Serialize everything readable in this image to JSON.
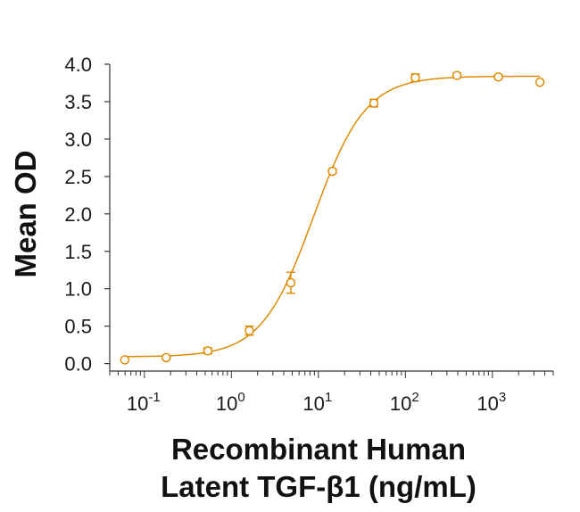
{
  "chart_data": {
    "type": "scatter",
    "title": "",
    "xlabel_lines": [
      "Recombinant Human",
      "Latent TGF-β1 (ng/mL)"
    ],
    "ylabel": "Mean OD",
    "x_scale": "log",
    "xlim": [
      0.04,
      5000
    ],
    "ylim": [
      -0.1,
      4.0
    ],
    "y_ticks": [
      {
        "value": 0.0,
        "label": "0.0"
      },
      {
        "value": 0.5,
        "label": "0.5"
      },
      {
        "value": 1.0,
        "label": "1.0"
      },
      {
        "value": 1.5,
        "label": "1.5"
      },
      {
        "value": 2.0,
        "label": "2.0"
      },
      {
        "value": 2.5,
        "label": "2.5"
      },
      {
        "value": 3.0,
        "label": "3.0"
      },
      {
        "value": 3.5,
        "label": "3.5"
      },
      {
        "value": 4.0,
        "label": "4.0"
      }
    ],
    "x_ticks": [
      {
        "value": 0.1,
        "base": "10",
        "exp": "-1"
      },
      {
        "value": 1,
        "base": "10",
        "exp": "0"
      },
      {
        "value": 10,
        "base": "10",
        "exp": "1"
      },
      {
        "value": 100,
        "base": "10",
        "exp": "2"
      },
      {
        "value": 1000,
        "base": "10",
        "exp": "3"
      }
    ],
    "series": [
      {
        "color": "#E08A00",
        "marker": "open-circle",
        "fit": "4PL",
        "points": [
          {
            "x": 0.0595,
            "y": 0.05,
            "err": 0.0
          },
          {
            "x": 0.178,
            "y": 0.08,
            "err": 0.02
          },
          {
            "x": 0.536,
            "y": 0.17,
            "err": 0.04
          },
          {
            "x": 1.61,
            "y": 0.44,
            "err": 0.06
          },
          {
            "x": 4.82,
            "y": 1.08,
            "err": 0.14
          },
          {
            "x": 14.5,
            "y": 2.57,
            "err": 0.02
          },
          {
            "x": 43.4,
            "y": 3.48,
            "err": 0.05
          },
          {
            "x": 130,
            "y": 3.82,
            "err": 0.05
          },
          {
            "x": 391,
            "y": 3.85,
            "err": 0.03
          },
          {
            "x": 1170,
            "y": 3.83,
            "err": 0.02
          },
          {
            "x": 3520,
            "y": 3.76,
            "err": 0.0
          }
        ]
      }
    ],
    "fit_curve": {
      "bottom": 0.09,
      "top": 3.84,
      "ec50": 8.8,
      "hill": 1.45
    },
    "grid": false,
    "legend": "none"
  }
}
